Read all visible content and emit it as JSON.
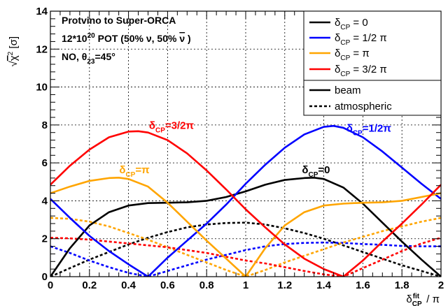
{
  "chart_data": {
    "type": "line",
    "xlabel": "δCPfit / π",
    "ylabel": "√χ² [σ]",
    "xlim": [
      0,
      2
    ],
    "ylim": [
      0,
      14
    ],
    "x_ticks": [
      "0",
      "0.2",
      "0.4",
      "0.6",
      "0.8",
      "1",
      "1.2",
      "1.4",
      "1.6",
      "1.8",
      "2"
    ],
    "y_ticks": [
      "0",
      "2",
      "4",
      "6",
      "8",
      "10",
      "12",
      "14"
    ],
    "grid": true,
    "info_lines": [
      "Protvino to Super-ORCA",
      "12*10²⁰ POT (50% ν, 50% ν̄ )",
      "NO, θ₂₃=45°"
    ],
    "legend": {
      "position": "top-right",
      "colors": [
        {
          "label": "δCP = 0",
          "color": "#000000"
        },
        {
          "label": "δCP = 1/2 π",
          "color": "#0000ff"
        },
        {
          "label": "δCP = π",
          "color": "#ffa500"
        },
        {
          "label": "δCP = 3/2 π",
          "color": "#ff0000"
        }
      ],
      "styles": [
        {
          "label": "beam",
          "dash": "solid"
        },
        {
          "label": "atmospheric",
          "dash": "dotted"
        }
      ]
    },
    "annotations": [
      {
        "text": "δCP=3/2π",
        "color": "#ff0000",
        "x": 0.62,
        "y": 7.8
      },
      {
        "text": "δCP=1/2π",
        "color": "#0000ff",
        "x": 1.63,
        "y": 7.65
      },
      {
        "text": "δCP=π",
        "color": "#ffa500",
        "x": 0.43,
        "y": 5.45
      },
      {
        "text": "δCP=0",
        "color": "#000000",
        "x": 1.36,
        "y": 5.45
      }
    ],
    "series": [
      {
        "name": "δCP = 0",
        "style": "beam",
        "color": "#000000",
        "x": [
          0,
          0.1,
          0.2,
          0.3,
          0.4,
          0.5,
          0.6,
          0.7,
          0.8,
          0.9,
          1.0,
          1.1,
          1.2,
          1.3,
          1.35,
          1.4,
          1.5,
          1.6,
          1.7,
          1.8,
          1.9,
          2.0
        ],
        "y": [
          0,
          1.5,
          2.7,
          3.4,
          3.75,
          3.88,
          3.9,
          3.92,
          4.0,
          4.2,
          4.5,
          4.85,
          5.1,
          5.2,
          5.22,
          5.15,
          4.7,
          3.85,
          2.85,
          1.85,
          0.9,
          0
        ]
      },
      {
        "name": "δCP = 1/2 π",
        "style": "beam",
        "color": "#0000ff",
        "x": [
          0,
          0.1,
          0.2,
          0.3,
          0.4,
          0.5,
          0.6,
          0.7,
          0.8,
          0.9,
          1.0,
          1.1,
          1.2,
          1.3,
          1.4,
          1.45,
          1.5,
          1.6,
          1.7,
          1.8,
          1.9,
          2.0
        ],
        "y": [
          4.1,
          3.1,
          2.15,
          1.35,
          0.65,
          0,
          1.0,
          1.9,
          2.8,
          3.8,
          4.9,
          5.9,
          6.8,
          7.5,
          7.9,
          7.95,
          7.85,
          7.35,
          6.6,
          5.75,
          4.9,
          4.1
        ]
      },
      {
        "name": "δCP = π",
        "style": "beam",
        "color": "#ffa500",
        "x": [
          0,
          0.1,
          0.2,
          0.3,
          0.35,
          0.4,
          0.5,
          0.6,
          0.7,
          0.8,
          0.9,
          1.0,
          1.1,
          1.2,
          1.3,
          1.4,
          1.5,
          1.6,
          1.7,
          1.8,
          1.9,
          2.0
        ],
        "y": [
          4.4,
          4.75,
          5.05,
          5.2,
          5.22,
          5.15,
          4.75,
          3.9,
          2.9,
          1.9,
          0.95,
          0,
          1.5,
          2.7,
          3.4,
          3.75,
          3.85,
          3.9,
          3.92,
          4.0,
          4.2,
          4.4
        ]
      },
      {
        "name": "δCP = 3/2 π",
        "style": "beam",
        "color": "#ff0000",
        "x": [
          0,
          0.1,
          0.2,
          0.3,
          0.4,
          0.45,
          0.5,
          0.6,
          0.7,
          0.8,
          0.9,
          1.0,
          1.1,
          1.2,
          1.3,
          1.4,
          1.5,
          1.6,
          1.7,
          1.8,
          1.9,
          2.0
        ],
        "y": [
          4.85,
          5.85,
          6.7,
          7.35,
          7.65,
          7.67,
          7.6,
          7.2,
          6.5,
          5.6,
          4.6,
          3.55,
          2.6,
          1.7,
          0.95,
          0.4,
          0,
          0.85,
          1.85,
          2.8,
          3.8,
          4.85
        ]
      },
      {
        "name": "δCP = 0",
        "style": "atmospheric",
        "color": "#000000",
        "x": [
          0,
          0.1,
          0.2,
          0.3,
          0.4,
          0.5,
          0.6,
          0.7,
          0.8,
          0.9,
          1.0,
          1.1,
          1.2,
          1.3,
          1.4,
          1.5,
          1.6,
          1.7,
          1.8,
          1.9,
          2.0
        ],
        "y": [
          0,
          0.45,
          0.9,
          1.3,
          1.7,
          2.05,
          2.35,
          2.6,
          2.75,
          2.83,
          2.85,
          2.75,
          2.55,
          2.3,
          2.0,
          1.65,
          1.3,
          0.95,
          0.6,
          0.3,
          0
        ]
      },
      {
        "name": "δCP = 1/2 π",
        "style": "atmospheric",
        "color": "#0000ff",
        "x": [
          0,
          0.1,
          0.2,
          0.3,
          0.4,
          0.5,
          0.6,
          0.7,
          0.8,
          0.9,
          1.0,
          1.1,
          1.2,
          1.3,
          1.4,
          1.5,
          1.6,
          1.7,
          1.8,
          1.9,
          2.0
        ],
        "y": [
          1.6,
          1.25,
          0.85,
          0.5,
          0.2,
          0,
          0.3,
          0.6,
          0.9,
          1.15,
          1.4,
          1.6,
          1.72,
          1.78,
          1.8,
          1.78,
          1.72,
          1.68,
          1.62,
          1.6,
          1.6
        ]
      },
      {
        "name": "δCP = π",
        "style": "atmospheric",
        "color": "#ffa500",
        "x": [
          0,
          0.1,
          0.2,
          0.3,
          0.4,
          0.5,
          0.6,
          0.7,
          0.8,
          0.9,
          1.0,
          1.1,
          1.2,
          1.3,
          1.4,
          1.5,
          1.6,
          1.7,
          1.8,
          1.9,
          2.0
        ],
        "y": [
          3.1,
          3.05,
          2.9,
          2.65,
          2.3,
          1.95,
          1.55,
          1.15,
          0.75,
          0.35,
          0,
          0.35,
          0.75,
          1.1,
          1.45,
          1.8,
          2.1,
          2.4,
          2.65,
          2.9,
          3.1
        ]
      },
      {
        "name": "δCP = 3/2 π",
        "style": "atmospheric",
        "color": "#ff0000",
        "x": [
          0,
          0.1,
          0.2,
          0.3,
          0.4,
          0.5,
          0.6,
          0.7,
          0.8,
          0.9,
          1.0,
          1.1,
          1.2,
          1.3,
          1.4,
          1.5,
          1.6,
          1.7,
          1.8,
          1.9,
          2.0
        ],
        "y": [
          2.05,
          2.02,
          1.95,
          1.85,
          1.75,
          1.65,
          1.55,
          1.4,
          1.25,
          1.05,
          0.85,
          0.7,
          0.5,
          0.3,
          0.12,
          0,
          0.45,
          0.9,
          1.35,
          1.75,
          2.05
        ]
      }
    ]
  }
}
